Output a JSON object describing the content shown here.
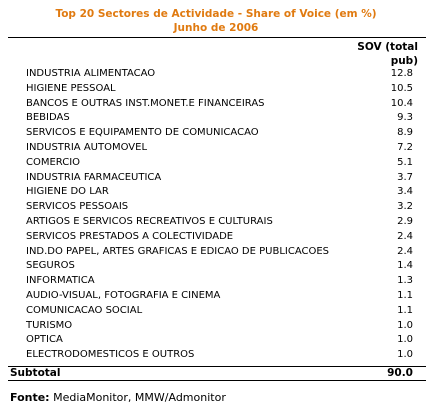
{
  "title": "Top 20 Sectores de Actividade - Share of Voice (em %)",
  "subtitle": "Junho de 2006",
  "header": {
    "col_line1": "SOV (total",
    "col_line2": "pub)"
  },
  "rows": [
    {
      "label": "INDUSTRIA ALIMENTACAO",
      "value": "12.8"
    },
    {
      "label": "HIGIENE PESSOAL",
      "value": "10.5"
    },
    {
      "label": "BANCOS E OUTRAS INST.MONET.E FINANCEIRAS",
      "value": "10.4"
    },
    {
      "label": "BEBIDAS",
      "value": "9.3"
    },
    {
      "label": "SERVICOS E EQUIPAMENTO DE COMUNICACAO",
      "value": "8.9"
    },
    {
      "label": "INDUSTRIA AUTOMOVEL",
      "value": "7.2"
    },
    {
      "label": "COMERCIO",
      "value": "5.1"
    },
    {
      "label": "INDUSTRIA FARMACEUTICA",
      "value": "3.7"
    },
    {
      "label": "HIGIENE DO LAR",
      "value": "3.4"
    },
    {
      "label": "SERVICOS PESSOAIS",
      "value": "3.2"
    },
    {
      "label": "ARTIGOS E SERVICOS RECREATIVOS E CULTURAIS",
      "value": "2.9"
    },
    {
      "label": "SERVICOS PRESTADOS A COLECTIVIDADE",
      "value": "2.4"
    },
    {
      "label": "IND.DO PAPEL, ARTES GRAFICAS E EDICAO DE PUBLICACOES",
      "value": "2.4"
    },
    {
      "label": "SEGUROS",
      "value": "1.4"
    },
    {
      "label": "INFORMATICA",
      "value": "1.3"
    },
    {
      "label": "AUDIO-VISUAL, FOTOGRAFIA E CINEMA",
      "value": "1.1"
    },
    {
      "label": "COMUNICACAO SOCIAL",
      "value": "1.1"
    },
    {
      "label": "TURISMO",
      "value": "1.0"
    },
    {
      "label": "OPTICA",
      "value": "1.0"
    },
    {
      "label": "ELECTRODOMESTICOS E OUTROS",
      "value": "1.0"
    }
  ],
  "subtotal": {
    "label": "Subtotal",
    "value": "90.0"
  },
  "footer": {
    "source_label": "Fonte:",
    "source_text": "MediaMonitor, MMW/Admonitor"
  }
}
